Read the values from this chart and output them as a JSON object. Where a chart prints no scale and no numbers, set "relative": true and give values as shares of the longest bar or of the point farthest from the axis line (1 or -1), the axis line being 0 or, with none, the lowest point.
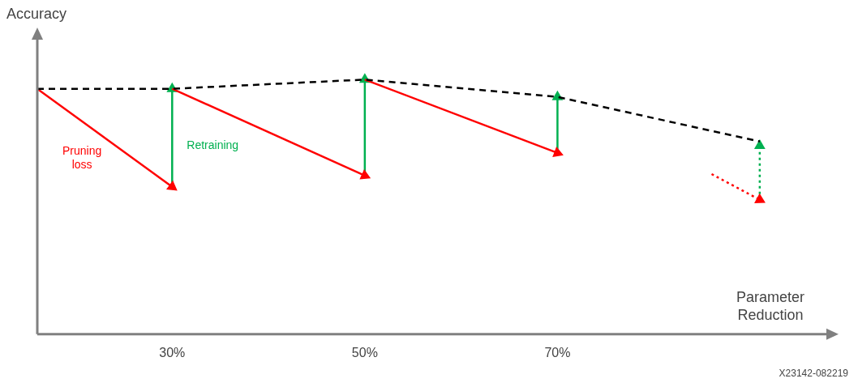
{
  "chart_data": {
    "type": "line",
    "relative": true,
    "xlabel": "Parameter Reduction",
    "ylabel": "Accuracy",
    "xlim": [
      16,
      98
    ],
    "xticks": [
      {
        "value": 30,
        "label": "30%"
      },
      {
        "value": 50,
        "label": "50%"
      },
      {
        "value": 70,
        "label": "70%"
      }
    ],
    "grid": false,
    "legend": false,
    "marker": "none",
    "annotations": [
      "X23142-082219"
    ],
    "series": [
      {
        "color": "#000000",
        "line_style": "dashed",
        "x": [
          16,
          30,
          50,
          70,
          91
        ],
        "values": [
          0.964,
          0.964,
          1,
          0.932,
          0.757
        ]
      },
      {
        "name": "Pruning loss",
        "color": "#ff0000",
        "line_style": "solid",
        "marker": "triangle",
        "x": [
          16,
          30
        ],
        "values": [
          0.964,
          0.579
        ]
      },
      {
        "color": "#ff0000",
        "line_style": "solid",
        "marker": "triangle",
        "x": [
          30,
          50
        ],
        "values": [
          0.964,
          0.623
        ]
      },
      {
        "color": "#ff0000",
        "line_style": "solid",
        "marker": "triangle",
        "x": [
          50,
          70
        ],
        "values": [
          1,
          0.712
        ]
      },
      {
        "color": "#ff0000",
        "line_style": "dotted",
        "marker": "triangle",
        "x": [
          86,
          91
        ],
        "values": [
          0.629,
          0.528
        ]
      },
      {
        "name": "Retraining",
        "color": "#00b050",
        "line_style": "solid",
        "marker": "triangle",
        "x": [
          30,
          30
        ],
        "values": [
          0.579,
          0.964
        ]
      },
      {
        "color": "#00b050",
        "line_style": "solid",
        "marker": "triangle",
        "x": [
          50,
          50
        ],
        "values": [
          0.623,
          1
        ]
      },
      {
        "color": "#00b050",
        "line_style": "solid",
        "marker": "triangle",
        "x": [
          70,
          70
        ],
        "values": [
          0.712,
          0.932
        ]
      },
      {
        "color": "#00b050",
        "line_style": "dotted",
        "marker": "triangle",
        "x": [
          91,
          91
        ],
        "values": [
          0.528,
          0.74
        ]
      }
    ]
  }
}
